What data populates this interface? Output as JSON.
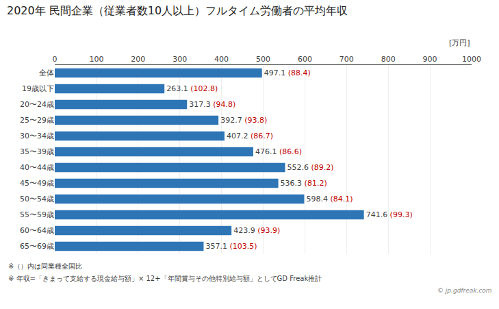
{
  "chart_data": {
    "type": "bar",
    "orientation": "horizontal",
    "title": "2020年 民間企業（従業者数10人以上）フルタイム労働者の平均年収",
    "xlabel": "[万円]",
    "categories": [
      "全体",
      "19歳以下",
      "20〜24歳",
      "25〜29歳",
      "30〜34歳",
      "35〜39歳",
      "40〜44歳",
      "45〜49歳",
      "50〜54歳",
      "55〜59歳",
      "60〜64歳",
      "65〜69歳"
    ],
    "values": [
      497.1,
      263.1,
      317.3,
      392.7,
      407.2,
      476.1,
      552.6,
      536.3,
      598.4,
      741.6,
      423.9,
      357.1
    ],
    "ratios": [
      88.4,
      102.8,
      94.8,
      93.8,
      86.7,
      86.6,
      89.2,
      81.2,
      84.1,
      99.3,
      93.9,
      103.5
    ],
    "ratio_labels": [
      "(88.4)",
      "(102.8)",
      "(94.8)",
      "(93.8)",
      "(86.7)",
      "(86.6)",
      "(89.2)",
      "(81.2)",
      "(84.1)",
      "(99.3)",
      "(93.9)",
      "(103.5)"
    ],
    "ratio_color": "#C00000",
    "color": "#2E75B6",
    "data_labels": true,
    "xlim": [
      0,
      1000
    ],
    "xticks": [
      0,
      100,
      200,
      300,
      400,
      500,
      600,
      700,
      800,
      900,
      1000
    ],
    "grid": true,
    "footnotes": [
      "※（）内は同業種全国比",
      "※ 年収=「きまって支給する現金給与額」× 12+「年間賞与その他特別給与額」としてGD Freak推計"
    ],
    "watermark": "© jp.gdfreak.com"
  }
}
